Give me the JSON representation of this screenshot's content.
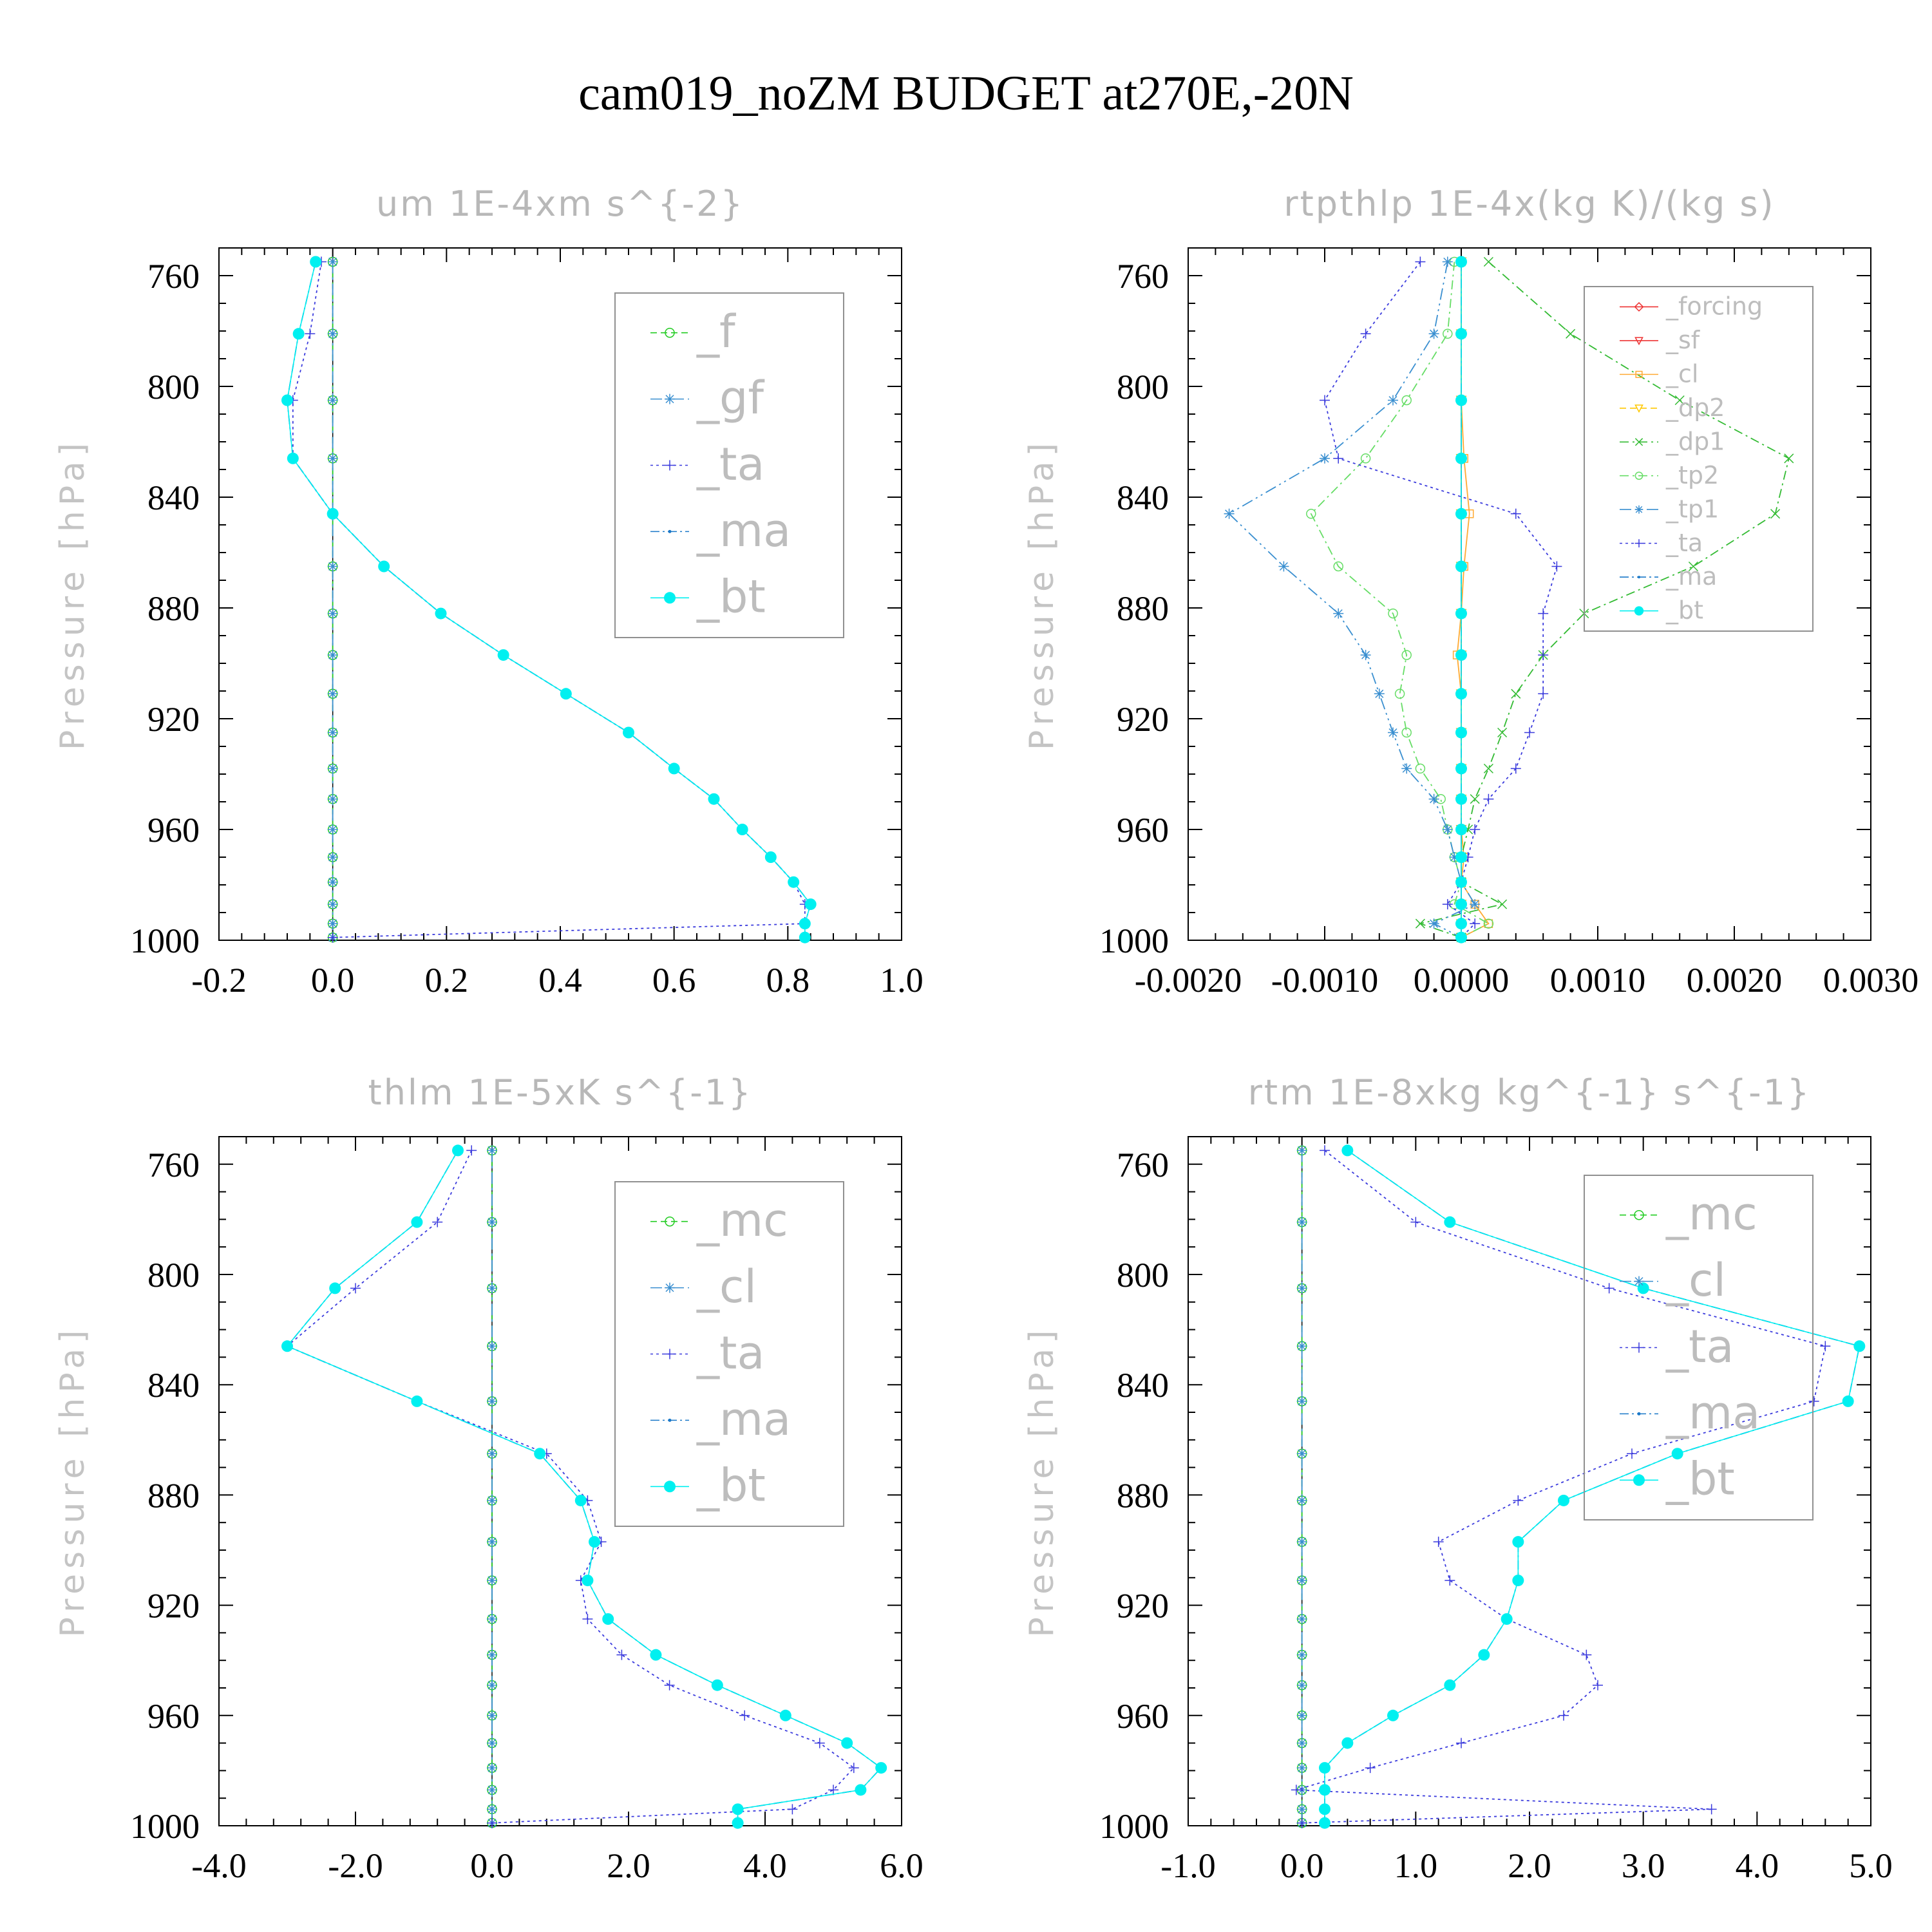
{
  "title": "cam019_noZM  BUDGET at270E,-20N",
  "colors": {
    "f": "#22cc22",
    "mc": "#22cc22",
    "gf": "#3a8fd0",
    "cl_blue": "#3a8fd0",
    "ta": "#3b3bdd",
    "ma": "#1a78c8",
    "bt": "#00f0f0",
    "forcing": "#ee3333",
    "sf": "#ee3333",
    "cl_orange": "#ffaa33",
    "dp2": "#ffc800",
    "dp1": "#33bb33",
    "tp2": "#66dd66",
    "tp1": "#3a8fd0"
  },
  "chart_data": [
    {
      "type": "line",
      "title": "um   1E-4xm s^{-2}",
      "ylabel": "Pressure [hPa]",
      "xlim": [
        -0.2,
        1.0
      ],
      "ylim": [
        1000,
        750
      ],
      "xticks": [
        -0.2,
        0.0,
        0.2,
        0.4,
        0.6,
        0.8,
        1.0
      ],
      "xtick_labels": [
        "-0.2",
        "0.0",
        "0.2",
        "0.4",
        "0.6",
        "0.8",
        "1.0"
      ],
      "yticks": [
        760,
        800,
        840,
        880,
        920,
        960,
        1000
      ],
      "legend_position": "top-right",
      "levels": [
        755,
        781,
        805,
        826,
        846,
        865,
        882,
        897,
        911,
        925,
        938,
        949,
        960,
        970,
        979,
        987,
        994,
        999
      ],
      "series": [
        {
          "name": "_f",
          "color_key": "f",
          "marker": "circle",
          "dash": "10,6",
          "values": [
            0,
            0,
            0,
            0,
            0,
            0,
            0,
            0,
            0,
            0,
            0,
            0,
            0,
            0,
            0,
            0,
            0,
            0
          ]
        },
        {
          "name": "_gf",
          "color_key": "gf",
          "marker": "star",
          "dash": "18,6,4,6",
          "values": [
            0,
            0,
            0,
            0,
            0,
            0,
            0,
            0,
            0,
            0,
            0,
            0,
            0,
            0,
            0,
            0,
            0,
            0
          ]
        },
        {
          "name": "_ta",
          "color_key": "ta",
          "marker": "plus",
          "dash": "4,5",
          "values": [
            -0.02,
            -0.04,
            -0.07,
            -0.07,
            0,
            0.09,
            0.19,
            0.3,
            0.41,
            0.52,
            0.6,
            0.67,
            0.72,
            0.77,
            0.81,
            0.83,
            0.83,
            0.0
          ]
        },
        {
          "name": "_ma",
          "color_key": "ma",
          "marker": "dot",
          "dash": "14,5,3,5",
          "values": [
            -0.03,
            -0.06,
            -0.08,
            -0.07,
            0,
            0.09,
            0.19,
            0.3,
            0.41,
            0.52,
            0.6,
            0.67,
            0.72,
            0.77,
            0.81,
            0.84,
            0.83,
            0.83
          ]
        },
        {
          "name": "_bt",
          "color_key": "bt",
          "marker": "bigdot",
          "dash": "",
          "values": [
            -0.03,
            -0.06,
            -0.08,
            -0.07,
            0,
            0.09,
            0.19,
            0.3,
            0.41,
            0.52,
            0.6,
            0.67,
            0.72,
            0.77,
            0.81,
            0.84,
            0.83,
            0.83
          ]
        }
      ]
    },
    {
      "type": "line",
      "title": "rtpthlp   1E-4x(kg K)/(kg s)",
      "ylabel": "Pressure [hPa]",
      "xlim": [
        -0.002,
        0.003
      ],
      "ylim": [
        1000,
        750
      ],
      "xticks": [
        -0.002,
        -0.001,
        0.0,
        0.001,
        0.002,
        0.003
      ],
      "xtick_labels": [
        "-0.0020",
        "-0.0010",
        "0.0000",
        "0.0010",
        "0.0020",
        "0.0030"
      ],
      "yticks": [
        760,
        800,
        840,
        880,
        920,
        960,
        1000
      ],
      "legend_position": "top-right",
      "levels": [
        755,
        781,
        805,
        826,
        846,
        865,
        882,
        897,
        911,
        925,
        938,
        949,
        960,
        970,
        979,
        987,
        994,
        999
      ],
      "series": [
        {
          "name": "_forcing",
          "color_key": "forcing",
          "marker": "diamond",
          "dash": "",
          "values": [
            0,
            0,
            0,
            0,
            0,
            0,
            0,
            0,
            0,
            0,
            0,
            0,
            0,
            0,
            0,
            0,
            0,
            0
          ]
        },
        {
          "name": "_sf",
          "color_key": "sf",
          "marker": "tri",
          "dash": "",
          "values": [
            0,
            0,
            0,
            0,
            0,
            0,
            0,
            0,
            0,
            0,
            0,
            0,
            0,
            0,
            0,
            0,
            0,
            0
          ]
        },
        {
          "name": "_cl",
          "color_key": "cl_orange",
          "marker": "square",
          "dash": "",
          "values": [
            0,
            0,
            0,
            2e-05,
            6e-05,
            2e-05,
            0,
            -3e-05,
            0,
            0,
            0,
            0,
            0,
            2e-05,
            0,
            0.0001,
            0.0002,
            0
          ]
        },
        {
          "name": "_dp2",
          "color_key": "dp2",
          "marker": "tri",
          "dash": "10,6",
          "values": [
            0,
            0,
            0,
            0,
            0,
            0,
            0,
            0,
            0,
            0,
            0,
            0,
            0,
            0,
            0,
            0,
            0,
            0
          ]
        },
        {
          "name": "_dp1",
          "color_key": "dp1",
          "marker": "cross",
          "dash": "14,6,3,6",
          "values": [
            0.0002,
            0.0008,
            0.0016,
            0.0024,
            0.0023,
            0.0017,
            0.0009,
            0.0006,
            0.0004,
            0.0003,
            0.0002,
            0.0001,
            5e-05,
            0,
            0,
            0.0003,
            -0.0003,
            0
          ]
        },
        {
          "name": "_tp2",
          "color_key": "tp2",
          "marker": "circle",
          "dash": "14,6,3,6",
          "values": [
            -5e-05,
            -0.0001,
            -0.0004,
            -0.0007,
            -0.0011,
            -0.0009,
            -0.0005,
            -0.0004,
            -0.00045,
            -0.0004,
            -0.0003,
            -0.00015,
            -0.0001,
            -5e-05,
            0,
            -5e-05,
            0.0002,
            0
          ]
        },
        {
          "name": "_tp1",
          "color_key": "tp1",
          "marker": "star",
          "dash": "18,6,3,6,3,6",
          "values": [
            -0.0001,
            -0.0002,
            -0.0005,
            -0.001,
            -0.0017,
            -0.0013,
            -0.0009,
            -0.0007,
            -0.0006,
            -0.0005,
            -0.0004,
            -0.0002,
            -0.0001,
            -5e-05,
            0,
            0.0001,
            -0.0002,
            0
          ]
        },
        {
          "name": "_ta",
          "color_key": "ta",
          "marker": "plus",
          "dash": "4,5",
          "values": [
            -0.0003,
            -0.0007,
            -0.001,
            -0.0009,
            0.0004,
            0.0007,
            0.0006,
            0.0006,
            0.0006,
            0.0005,
            0.0004,
            0.0002,
            0.0001,
            5e-05,
            0,
            -0.0001,
            0.0001,
            0
          ]
        },
        {
          "name": "_ma",
          "color_key": "ma",
          "marker": "dot",
          "dash": "14,5,3,5",
          "values": [
            0,
            0,
            0,
            0,
            0,
            0,
            0,
            0,
            0,
            0,
            0,
            0,
            0,
            0,
            0,
            0,
            0,
            0
          ]
        },
        {
          "name": "_bt",
          "color_key": "bt",
          "marker": "bigdot",
          "dash": "",
          "values": [
            0,
            0,
            0,
            0,
            0,
            0,
            0,
            0,
            0,
            0,
            0,
            0,
            0,
            0,
            0,
            0,
            0,
            0
          ]
        }
      ]
    },
    {
      "type": "line",
      "title": "thlm   1E-5xK s^{-1}",
      "ylabel": "Pressure [hPa]",
      "xlim": [
        -4.0,
        6.0
      ],
      "ylim": [
        1000,
        750
      ],
      "xticks": [
        -4.0,
        -2.0,
        0.0,
        2.0,
        4.0,
        6.0
      ],
      "xtick_labels": [
        "-4.0",
        "-2.0",
        "0.0",
        "2.0",
        "4.0",
        "6.0"
      ],
      "yticks": [
        760,
        800,
        840,
        880,
        920,
        960,
        1000
      ],
      "legend_position": "top-right",
      "levels": [
        755,
        781,
        805,
        826,
        846,
        865,
        882,
        897,
        911,
        925,
        938,
        949,
        960,
        970,
        979,
        987,
        994,
        999
      ],
      "series": [
        {
          "name": "_mc",
          "color_key": "mc",
          "marker": "circle",
          "dash": "10,6",
          "values": [
            0,
            0,
            0,
            0,
            0,
            0,
            0,
            0,
            0,
            0,
            0,
            0,
            0,
            0,
            0,
            0,
            0,
            0
          ]
        },
        {
          "name": "_cl",
          "color_key": "cl_blue",
          "marker": "star",
          "dash": "18,6,4,6",
          "values": [
            0,
            0,
            0,
            0,
            0,
            0,
            0,
            0,
            0,
            0,
            0,
            0,
            0,
            0,
            0,
            0,
            0,
            0
          ]
        },
        {
          "name": "_ta",
          "color_key": "ta",
          "marker": "plus",
          "dash": "4,5",
          "values": [
            -0.3,
            -0.8,
            -2.0,
            -3.0,
            -1.1,
            0.8,
            1.4,
            1.6,
            1.3,
            1.4,
            1.9,
            2.6,
            3.7,
            4.8,
            5.3,
            5.0,
            4.4,
            0.0
          ]
        },
        {
          "name": "_ma",
          "color_key": "ma",
          "marker": "dot",
          "dash": "14,5,3,5",
          "values": [
            -0.5,
            -1.1,
            -2.3,
            -3.0,
            -1.1,
            0.7,
            1.3,
            1.5,
            1.4,
            1.7,
            2.4,
            3.3,
            4.3,
            5.2,
            5.7,
            5.4,
            3.6,
            3.6
          ]
        },
        {
          "name": "_bt",
          "color_key": "bt",
          "marker": "bigdot",
          "dash": "",
          "values": [
            -0.5,
            -1.1,
            -2.3,
            -3.0,
            -1.1,
            0.7,
            1.3,
            1.5,
            1.4,
            1.7,
            2.4,
            3.3,
            4.3,
            5.2,
            5.7,
            5.4,
            3.6,
            3.6
          ]
        }
      ]
    },
    {
      "type": "line",
      "title": "rtm   1E-8xkg kg^{-1} s^{-1}",
      "ylabel": "Pressure [hPa]",
      "xlim": [
        -1.0,
        5.0
      ],
      "ylim": [
        1000,
        750
      ],
      "xticks": [
        -1.0,
        0.0,
        1.0,
        2.0,
        3.0,
        4.0,
        5.0
      ],
      "xtick_labels": [
        "-1.0",
        "0.0",
        "1.0",
        "2.0",
        "3.0",
        "4.0",
        "5.0"
      ],
      "yticks": [
        760,
        800,
        840,
        880,
        920,
        960,
        1000
      ],
      "legend_position": "top-right",
      "levels": [
        755,
        781,
        805,
        826,
        846,
        865,
        882,
        897,
        911,
        925,
        938,
        949,
        960,
        970,
        979,
        987,
        994,
        999
      ],
      "series": [
        {
          "name": "_mc",
          "color_key": "mc",
          "marker": "circle",
          "dash": "10,6",
          "values": [
            0,
            0,
            0,
            0,
            0,
            0,
            0,
            0,
            0,
            0,
            0,
            0,
            0,
            0,
            0,
            0,
            0,
            0
          ]
        },
        {
          "name": "_cl",
          "color_key": "cl_blue",
          "marker": "star",
          "dash": "18,6,4,6",
          "values": [
            0,
            0,
            0,
            0,
            0,
            0,
            0,
            0,
            0,
            0,
            0,
            0,
            0,
            0,
            0,
            0,
            0,
            0
          ]
        },
        {
          "name": "_ta",
          "color_key": "ta",
          "marker": "plus",
          "dash": "4,5",
          "values": [
            0.2,
            1.0,
            2.7,
            4.6,
            4.5,
            2.9,
            1.9,
            1.2,
            1.3,
            1.8,
            2.5,
            2.6,
            2.3,
            1.4,
            0.6,
            -0.05,
            3.6,
            0.0
          ]
        },
        {
          "name": "_ma",
          "color_key": "ma",
          "marker": "dot",
          "dash": "14,5,3,5",
          "values": [
            0.4,
            1.3,
            3.0,
            4.9,
            4.8,
            3.3,
            2.3,
            1.9,
            1.9,
            1.8,
            1.6,
            1.3,
            0.8,
            0.4,
            0.2,
            0.2,
            0.2,
            0.2
          ]
        },
        {
          "name": "_bt",
          "color_key": "bt",
          "marker": "bigdot",
          "dash": "",
          "values": [
            0.4,
            1.3,
            3.0,
            4.9,
            4.8,
            3.3,
            2.3,
            1.9,
            1.9,
            1.8,
            1.6,
            1.3,
            0.8,
            0.4,
            0.2,
            0.2,
            0.2,
            0.2
          ]
        }
      ]
    }
  ]
}
